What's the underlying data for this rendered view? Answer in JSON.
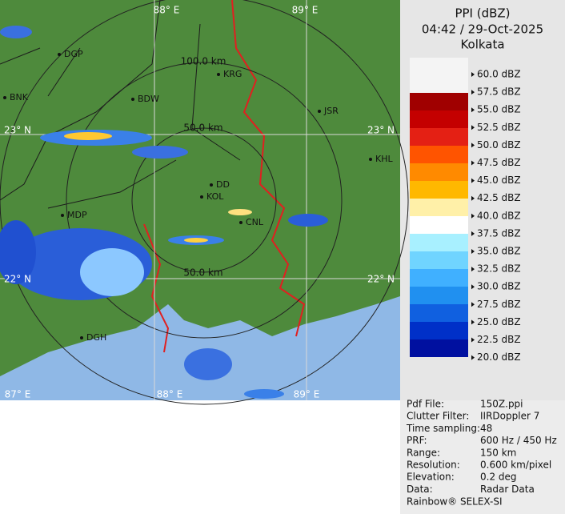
{
  "header": {
    "title": "PPI (dBZ)",
    "time": "04:42 / 29-Oct-2025",
    "location": "Kolkata"
  },
  "legend": {
    "labels": [
      "60.0 dBZ",
      "57.5 dBZ",
      "55.0 dBZ",
      "52.5 dBZ",
      "50.0 dBZ",
      "47.5 dBZ",
      "45.0 dBZ",
      "42.5 dBZ",
      "40.0 dBZ",
      "37.5 dBZ",
      "35.0 dBZ",
      "32.5 dBZ",
      "30.0 dBZ",
      "27.5 dBZ",
      "25.0 dBZ",
      "22.5 dBZ",
      "20.0 dBZ"
    ]
  },
  "info": {
    "rows": [
      [
        "Pdf File:",
        "150Z.ppi"
      ],
      [
        "Clutter Filter:",
        "IIRDoppler 7"
      ],
      [
        "Time sampling:",
        "48"
      ],
      [
        "PRF:",
        "600 Hz / 450 Hz"
      ],
      [
        "Range:",
        "150 km"
      ],
      [
        "Resolution:",
        "0.600 km/pixel"
      ],
      [
        "Elevation:",
        "0.2 deg"
      ],
      [
        "Data:",
        "Radar Data"
      ]
    ],
    "footer": "Rainbow® SELEX-SI"
  },
  "map": {
    "grid_labels": [
      "88° E",
      "89° E",
      "23° N",
      "22° N",
      "23° N",
      "22° N",
      "87° E",
      "88° E",
      "89° E"
    ],
    "ring_labels": [
      "100.0 km",
      "50.0 km",
      "50.0 km"
    ],
    "places": [
      "DGP",
      "BNK",
      "BDW",
      "KRG",
      "JSR",
      "KHL",
      "DD",
      "KOL",
      "CNL",
      "MDP",
      "DGH"
    ]
  }
}
